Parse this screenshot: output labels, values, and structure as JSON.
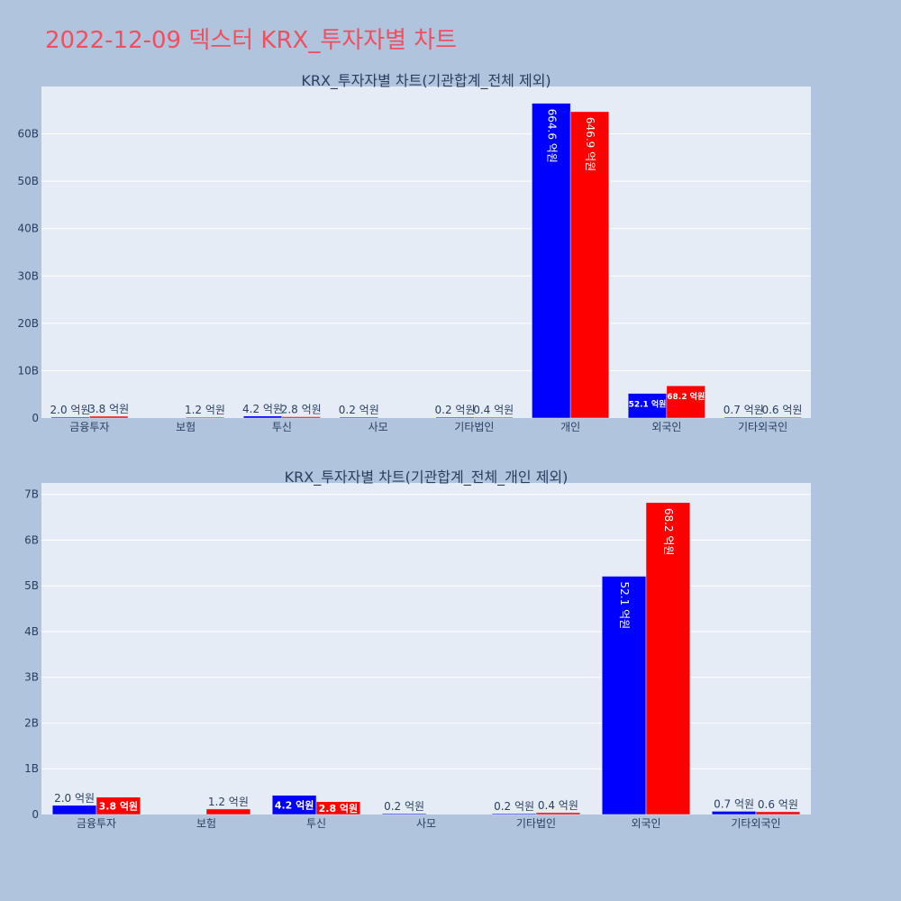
{
  "page": {
    "title": "2022-12-09 덱스터 KRX_투자자별 차트",
    "background": "#b0c4de",
    "plot_background": "#e5ecf6",
    "title_color": "#ef5060"
  },
  "chart_data": [
    {
      "type": "bar",
      "title": "KRX_투자자별 차트(기관합계_전체 제외)",
      "categories": [
        "금융투자",
        "보험",
        "투신",
        "사모",
        "기타법인",
        "개인",
        "외국인",
        "기타외국인"
      ],
      "series": [
        {
          "color": "#0000ff",
          "values": [
            0.2,
            null,
            0.42,
            0.02,
            0.02,
            66.46,
            5.21,
            0.07
          ],
          "labels": [
            "2.0 억원",
            "",
            "4.2 억원",
            "0.2 억원",
            "0.2 억원",
            "664.6 억원",
            "52.1 억원",
            "0.7 억원"
          ]
        },
        {
          "color": "#ff0000",
          "values": [
            0.38,
            0.12,
            0.28,
            null,
            0.04,
            64.69,
            6.82,
            0.06
          ],
          "labels": [
            "3.8 억원",
            "1.2 억원",
            "2.8 억원",
            "",
            "0.4 억원",
            "646.9 억원",
            "68.2 억원",
            "0.6 억원"
          ]
        }
      ],
      "yticks": [
        0,
        10,
        20,
        30,
        40,
        50,
        60
      ],
      "ytick_labels": [
        "0",
        "10B",
        "20B",
        "30B",
        "40B",
        "50B",
        "60B"
      ],
      "ylim": [
        0,
        70
      ],
      "grid": true
    },
    {
      "type": "bar",
      "title": "KRX_투자자별 차트(기관합계_전체_개인 제외)",
      "categories": [
        "금융투자",
        "보험",
        "투신",
        "사모",
        "기타법인",
        "외국인",
        "기타외국인"
      ],
      "series": [
        {
          "color": "#0000ff",
          "values": [
            0.2,
            null,
            0.42,
            0.02,
            0.02,
            5.21,
            0.07
          ],
          "labels": [
            "2.0 억원",
            "",
            "4.2 억원",
            "0.2 억원",
            "0.2 억원",
            "52.1 억원",
            "0.7 억원"
          ]
        },
        {
          "color": "#ff0000",
          "values": [
            0.38,
            0.12,
            0.28,
            null,
            0.04,
            6.82,
            0.06
          ],
          "labels": [
            "3.8 억원",
            "1.2 억원",
            "2.8 억원",
            "",
            "0.4 억원",
            "68.2 억원",
            "0.6 억원"
          ]
        }
      ],
      "yticks": [
        0,
        1,
        2,
        3,
        4,
        5,
        6,
        7
      ],
      "ytick_labels": [
        "0",
        "1B",
        "2B",
        "3B",
        "4B",
        "5B",
        "6B",
        "7B"
      ],
      "ylim": [
        0,
        7.25
      ],
      "grid": true
    }
  ]
}
